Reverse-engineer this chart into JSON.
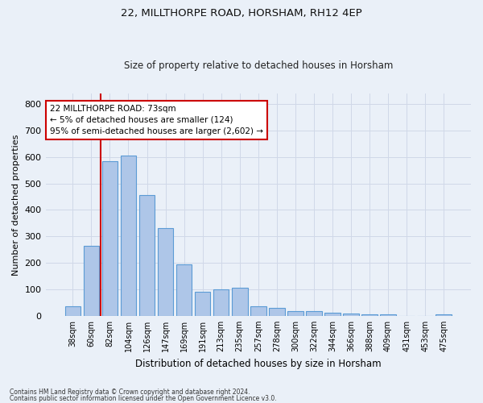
{
  "title1": "22, MILLTHORPE ROAD, HORSHAM, RH12 4EP",
  "title2": "Size of property relative to detached houses in Horsham",
  "xlabel": "Distribution of detached houses by size in Horsham",
  "ylabel": "Number of detached properties",
  "categories": [
    "38sqm",
    "60sqm",
    "82sqm",
    "104sqm",
    "126sqm",
    "147sqm",
    "169sqm",
    "191sqm",
    "213sqm",
    "235sqm",
    "257sqm",
    "278sqm",
    "300sqm",
    "322sqm",
    "344sqm",
    "366sqm",
    "388sqm",
    "409sqm",
    "431sqm",
    "453sqm",
    "475sqm"
  ],
  "values": [
    35,
    265,
    585,
    605,
    455,
    330,
    195,
    90,
    100,
    105,
    35,
    30,
    17,
    17,
    13,
    10,
    6,
    7,
    0,
    0,
    7
  ],
  "bar_color": "#aec6e8",
  "bar_edge_color": "#5b9bd5",
  "grid_color": "#d0d8e8",
  "background_color": "#eaf0f8",
  "annotation_text": "22 MILLTHORPE ROAD: 73sqm\n← 5% of detached houses are smaller (124)\n95% of semi-detached houses are larger (2,602) →",
  "annotation_box_color": "#ffffff",
  "annotation_border_color": "#cc0000",
  "red_line_color": "#cc0000",
  "ylim": [
    0,
    840
  ],
  "yticks": [
    0,
    100,
    200,
    300,
    400,
    500,
    600,
    700,
    800
  ],
  "footnote1": "Contains HM Land Registry data © Crown copyright and database right 2024.",
  "footnote2": "Contains public sector information licensed under the Open Government Licence v3.0."
}
